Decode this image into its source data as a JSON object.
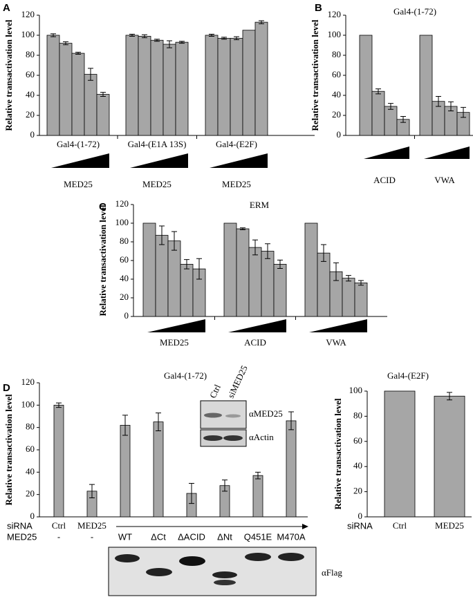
{
  "chart_data": [
    {
      "type": "grouped_bar",
      "panel": "A",
      "ylabel": "Relative transactivation level",
      "ylim": [
        0,
        120
      ],
      "yticks": [
        0,
        20,
        40,
        60,
        80,
        100,
        120
      ],
      "color": "#a6a6a6",
      "groups": [
        {
          "name": "Gal4-(1-72)",
          "treatment": "MED25",
          "values": [
            100,
            92,
            82,
            61,
            41
          ],
          "errors": [
            1.5,
            1.5,
            1,
            6,
            2
          ]
        },
        {
          "name": "Gal4-(E1A 13S)",
          "treatment": "MED25",
          "values": [
            100,
            99,
            95,
            91,
            93
          ],
          "errors": [
            1,
            1.5,
            1,
            3.5,
            1
          ]
        },
        {
          "name": "Gal4-(E2F)",
          "treatment": "MED25",
          "values": [
            100,
            97,
            97,
            105,
            113
          ],
          "errors": [
            1,
            1,
            1.5,
            null,
            1.5
          ]
        }
      ]
    },
    {
      "type": "grouped_bar",
      "panel": "B",
      "title": "Gal4-(1-72)",
      "ylabel": "Relative transactivation level",
      "ylim": [
        0,
        120
      ],
      "yticks": [
        0,
        20,
        40,
        60,
        80,
        100,
        120
      ],
      "color": "#a6a6a6",
      "groups": [
        {
          "treatment": "ACID",
          "values": [
            100,
            44,
            29,
            16
          ],
          "errors": [
            null,
            2.5,
            3,
            3
          ]
        },
        {
          "treatment": "VWA",
          "values": [
            100,
            34,
            29,
            23
          ],
          "errors": [
            null,
            5,
            4.5,
            5
          ]
        }
      ]
    },
    {
      "type": "grouped_bar",
      "panel": "C",
      "title": "ERM",
      "ylabel": "Relative transactivation level",
      "ylim": [
        0,
        120
      ],
      "yticks": [
        0,
        20,
        40,
        60,
        80,
        100,
        120
      ],
      "color": "#a6a6a6",
      "groups": [
        {
          "treatment": "MED25",
          "values": [
            100,
            87,
            81,
            56,
            51
          ],
          "errors": [
            null,
            10,
            10,
            5,
            11
          ]
        },
        {
          "treatment": "ACID",
          "values": [
            100,
            94,
            74,
            70,
            56
          ],
          "errors": [
            null,
            1,
            8,
            8,
            4.5
          ]
        },
        {
          "treatment": "VWA",
          "values": [
            100,
            68,
            48,
            41,
            36
          ],
          "errors": [
            null,
            9,
            9.5,
            3,
            2.5
          ]
        }
      ]
    },
    {
      "type": "bar",
      "panel": "D",
      "title": "Gal4-(1-72)",
      "ylabel": "Relative transactivation level",
      "ylim": [
        0,
        120
      ],
      "yticks": [
        0,
        20,
        40,
        60,
        80,
        100,
        120
      ],
      "color": "#a6a6a6",
      "row_labels": [
        "siRNA",
        "MED25"
      ],
      "rows": [
        [
          "Ctrl",
          "MED25",
          null,
          null,
          null,
          null,
          null,
          null
        ],
        [
          "-",
          "-",
          "WT",
          "ΔCt",
          "ΔACID",
          "ΔNt",
          "Q451E",
          "M470A"
        ]
      ],
      "values": [
        100,
        23,
        82,
        85,
        21,
        28,
        37,
        86
      ],
      "errors": [
        2,
        6,
        9,
        8,
        9,
        5,
        3,
        8
      ],
      "inset_lanes": [
        "Ctrl",
        "siMED25"
      ],
      "inset_antibodies": [
        "αMED25",
        "αActin"
      ],
      "blot_label": "αFlag"
    },
    {
      "type": "bar",
      "title": "Gal4-(E2F)",
      "ylabel": "Relative transactivation level",
      "ylim": [
        0,
        100
      ],
      "yticks": [
        0,
        20,
        40,
        60,
        80,
        100
      ],
      "color": "#a6a6a6",
      "row_labels": [
        "siRNA"
      ],
      "rows": [
        [
          "Ctrl",
          "MED25"
        ]
      ],
      "values": [
        100,
        96
      ],
      "errors": [
        null,
        3
      ]
    }
  ]
}
